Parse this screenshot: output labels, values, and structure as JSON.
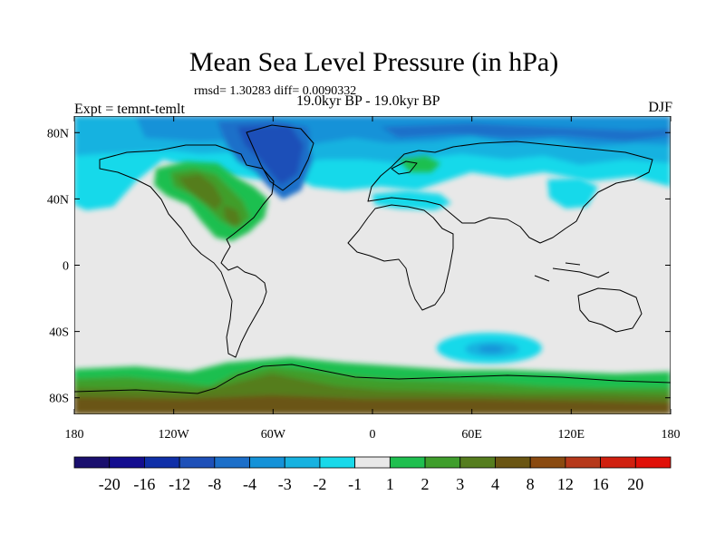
{
  "title": "Mean Sea Level Pressure (in hPa)",
  "stats": "rmsd= 1.30283 diff= 0.0090332",
  "experiment": "Expt = temnt-temlt",
  "period": "19.0kyr BP - 19.0kyr BP",
  "season": "DJF",
  "map": {
    "lon_range": [
      -180,
      180
    ],
    "lat_range": [
      -90,
      90
    ],
    "x_ticks": [
      {
        "lon": -180,
        "label": "180"
      },
      {
        "lon": -120,
        "label": "120W"
      },
      {
        "lon": -60,
        "label": "60W"
      },
      {
        "lon": 0,
        "label": "0"
      },
      {
        "lon": 60,
        "label": "60E"
      },
      {
        "lon": 120,
        "label": "120E"
      },
      {
        "lon": 180,
        "label": "180"
      }
    ],
    "y_ticks": [
      {
        "lat": 80,
        "label": "80N"
      },
      {
        "lat": 40,
        "label": "40N"
      },
      {
        "lat": 0,
        "label": "0"
      },
      {
        "lat": -40,
        "label": "40S"
      },
      {
        "lat": -80,
        "label": "80S"
      }
    ]
  },
  "colorbar": {
    "colors": [
      "#1a0f6e",
      "#130d8f",
      "#0f2fa8",
      "#1e50b8",
      "#1c6fc9",
      "#1592d8",
      "#17b2e0",
      "#19d9ea",
      "#e8e8e8",
      "#1fbf4f",
      "#3f9e2c",
      "#557d1e",
      "#6a5512",
      "#8a4a10",
      "#b6381a",
      "#d0200f",
      "#e01008"
    ],
    "labels": [
      "-20",
      "-16",
      "-12",
      "-8",
      "-4",
      "-3",
      "-2",
      "-1",
      "1",
      "2",
      "3",
      "4",
      "8",
      "12",
      "16",
      "20"
    ]
  },
  "colors": {
    "neutral": "#e8e8e8",
    "cyan": "#19d9ea",
    "light_blue": "#17b2e0",
    "mid_blue": "#1592d8",
    "blue": "#1c6fc9",
    "dark_blue": "#1e50b8",
    "green": "#1fbf4f",
    "olive": "#3f9e2c",
    "dark_olive": "#557d1e",
    "brown": "#6a5512"
  }
}
